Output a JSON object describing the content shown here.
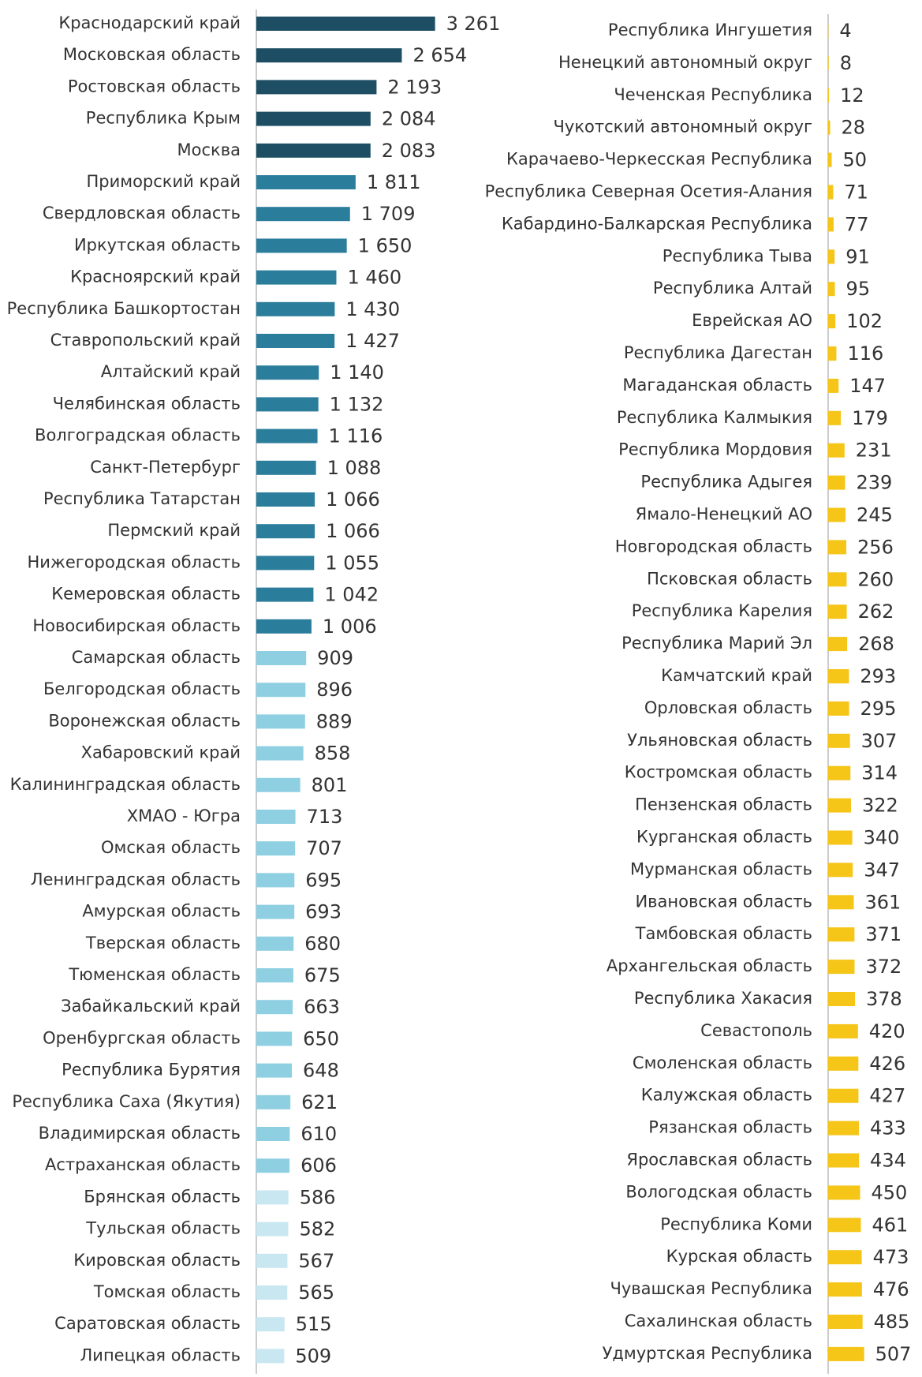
{
  "chart_data": [
    {
      "type": "barh",
      "categories": [
        "Краснодарский край",
        "Московская область",
        "Ростовская область",
        "Республика Крым",
        "Москва",
        "Приморский край",
        "Свердловская область",
        "Иркутская область",
        "Красноярский край",
        "Республика Башкортостан",
        "Ставропольский край",
        "Алтайский край",
        "Челябинская область",
        "Волгоградская область",
        "Санкт-Петербург",
        "Республика Татарстан",
        "Пермский край",
        "Нижегородская область",
        "Кемеровская область",
        "Новосибирская область",
        "Самарская область",
        "Белгородская область",
        "Воронежская область",
        "Хабаровский край",
        "Калининградская область",
        "ХМАО - Югра",
        "Омская область",
        "Ленинградская область",
        "Амурская область",
        "Тверская область",
        "Тюменская область",
        "Забайкальский край",
        "Оренбургская область",
        "Республика Бурятия",
        "Республика Саха (Якутия)",
        "Владимирская область",
        "Астраханская область",
        "Брянская область",
        "Тульская область",
        "Кировская область",
        "Томская область",
        "Саратовская область",
        "Липецкая область"
      ],
      "values": [
        3261,
        2654,
        2193,
        2084,
        2083,
        1811,
        1709,
        1650,
        1460,
        1430,
        1427,
        1140,
        1132,
        1116,
        1088,
        1066,
        1066,
        1055,
        1042,
        1006,
        909,
        896,
        889,
        858,
        801,
        713,
        707,
        695,
        693,
        680,
        675,
        663,
        650,
        648,
        621,
        610,
        606,
        586,
        582,
        567,
        565,
        515,
        509
      ],
      "value_labels": [
        "3 261",
        "2 654",
        "2 193",
        "2 084",
        "2 083",
        "1 811",
        "1 709",
        "1 650",
        "1 460",
        "1 430",
        "1 427",
        "1 140",
        "1 132",
        "1 116",
        "1 088",
        "1 066",
        "1 066",
        "1 055",
        "1 042",
        "1 006",
        "909",
        "896",
        "889",
        "858",
        "801",
        "713",
        "707",
        "695",
        "693",
        "680",
        "675",
        "663",
        "650",
        "648",
        "621",
        "610",
        "606",
        "586",
        "582",
        "567",
        "565",
        "515",
        "509"
      ],
      "colors": [
        "#1d4e63",
        "#1d4e63",
        "#1d4e63",
        "#1d4e63",
        "#1d4e63",
        "#2b7d9c",
        "#2b7d9c",
        "#2b7d9c",
        "#2b7d9c",
        "#2b7d9c",
        "#2b7d9c",
        "#2b7d9c",
        "#2b7d9c",
        "#2b7d9c",
        "#2b7d9c",
        "#2b7d9c",
        "#2b7d9c",
        "#2b7d9c",
        "#2b7d9c",
        "#2b7d9c",
        "#8ecfe2",
        "#8ecfe2",
        "#8ecfe2",
        "#8ecfe2",
        "#8ecfe2",
        "#8ecfe2",
        "#8ecfe2",
        "#8ecfe2",
        "#8ecfe2",
        "#8ecfe2",
        "#8ecfe2",
        "#8ecfe2",
        "#8ecfe2",
        "#8ecfe2",
        "#8ecfe2",
        "#8ecfe2",
        "#8ecfe2",
        "#c8e7f1",
        "#c8e7f1",
        "#c8e7f1",
        "#c8e7f1",
        "#c8e7f1",
        "#c8e7f1"
      ],
      "xlim": [
        0,
        4000
      ]
    },
    {
      "type": "barh",
      "categories": [
        "Республика Ингушетия",
        "Ненецкий автономный округ",
        "Чеченская Республика",
        "Чукотский автономный округ",
        "Карачаево-Черкесская Республика",
        "Республика Северная Осетия-Алания",
        "Кабардино-Балкарская Республика",
        "Республика Тыва",
        "Республика Алтай",
        "Еврейская АО",
        "Республика Дагестан",
        "Магаданская область",
        "Республика Калмыкия",
        "Республика Мордовия",
        "Республика Адыгея",
        "Ямало-Ненецкий АО",
        "Новгородская область",
        "Псковская область",
        "Республика Карелия",
        "Республика Марий Эл",
        "Камчатский край",
        "Орловская область",
        "Ульяновская область",
        "Костромская область",
        "Пензенская область",
        "Курганская область",
        "Мурманская область",
        "Ивановская область",
        "Тамбовская область",
        "Архангельская область",
        "Республика Хакасия",
        "Севастополь",
        "Смоленская область",
        "Калужская область",
        "Рязанская область",
        "Ярославская область",
        "Вологодская область",
        "Республика Коми",
        "Курская область",
        "Чувашская Республика",
        "Сахалинская область",
        "Удмуртская Республика"
      ],
      "values": [
        4,
        8,
        12,
        28,
        50,
        71,
        77,
        91,
        95,
        102,
        116,
        147,
        179,
        231,
        239,
        245,
        256,
        260,
        262,
        268,
        293,
        295,
        307,
        314,
        322,
        340,
        347,
        361,
        371,
        372,
        378,
        420,
        426,
        427,
        433,
        434,
        450,
        461,
        473,
        476,
        485,
        507
      ],
      "color": "#f5c518",
      "xlim": [
        0,
        1000
      ]
    }
  ]
}
